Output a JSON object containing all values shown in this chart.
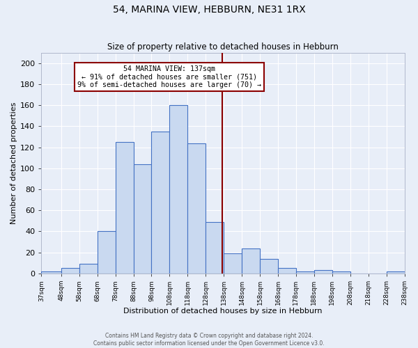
{
  "title1": "54, MARINA VIEW, HEBBURN, NE31 1RX",
  "title2": "Size of property relative to detached houses in Hebburn",
  "xlabel": "Distribution of detached houses by size in Hebburn",
  "ylabel": "Number of detached properties",
  "bar_left_edges": [
    37,
    48,
    58,
    68,
    78,
    88,
    98,
    108,
    118,
    128,
    138,
    148,
    158,
    168,
    178,
    188,
    198,
    208,
    218,
    228
  ],
  "bar_widths": [
    11,
    10,
    10,
    10,
    10,
    10,
    10,
    10,
    10,
    10,
    10,
    10,
    10,
    10,
    10,
    10,
    10,
    10,
    10,
    10
  ],
  "bar_heights": [
    2,
    5,
    9,
    40,
    125,
    104,
    135,
    160,
    124,
    49,
    19,
    24,
    14,
    5,
    2,
    3,
    2,
    0,
    0,
    2
  ],
  "bar_color": "#c9d9f0",
  "bar_edgecolor": "#4472c4",
  "vline_x": 137,
  "vline_color": "#8B0000",
  "annotation_text": "54 MARINA VIEW: 137sqm\n← 91% of detached houses are smaller (751)\n9% of semi-detached houses are larger (70) →",
  "annotation_box_edgecolor": "#8B0000",
  "annotation_box_facecolor": "#ffffff",
  "ylim": [
    0,
    210
  ],
  "yticks": [
    0,
    20,
    40,
    60,
    80,
    100,
    120,
    140,
    160,
    180,
    200
  ],
  "bg_color": "#e8eef8",
  "grid_color": "#ffffff",
  "footer1": "Contains HM Land Registry data © Crown copyright and database right 2024.",
  "footer2": "Contains public sector information licensed under the Open Government Licence v3.0.",
  "tick_labels": [
    "37sqm",
    "48sqm",
    "58sqm",
    "68sqm",
    "78sqm",
    "88sqm",
    "98sqm",
    "108sqm",
    "118sqm",
    "128sqm",
    "138sqm",
    "148sqm",
    "158sqm",
    "168sqm",
    "178sqm",
    "188sqm",
    "198sqm",
    "208sqm",
    "218sqm",
    "228sqm",
    "238sqm"
  ]
}
